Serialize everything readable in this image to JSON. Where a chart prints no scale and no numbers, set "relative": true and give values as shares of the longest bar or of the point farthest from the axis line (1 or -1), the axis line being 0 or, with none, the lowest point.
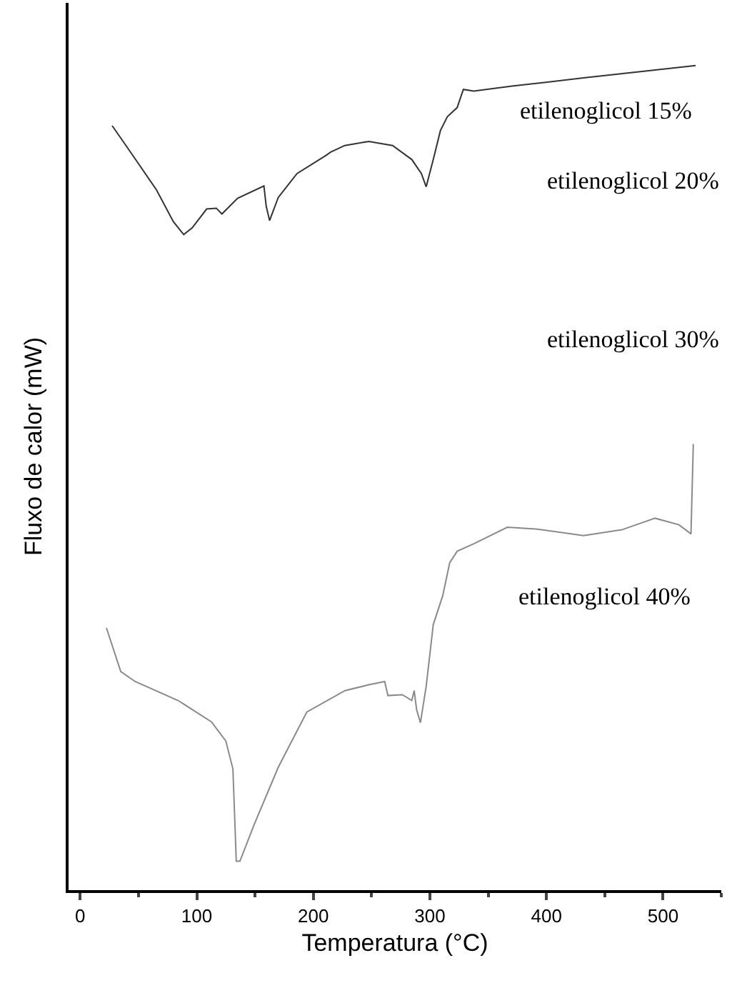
{
  "chart_data": {
    "type": "line",
    "relative": true,
    "xlabel": "Temperatura (°C)",
    "ylabel": "Fluxo de calor (mW)",
    "xlim": [
      -10,
      550
    ],
    "xticks": [
      0,
      100,
      200,
      300,
      400,
      500
    ],
    "grid": false,
    "legend": false,
    "marker": "none",
    "line_style": "solid",
    "series": [
      {
        "name": "etilenoglicol 15%",
        "color": "#333333",
        "x": [
          27.4,
          34.8,
          49,
          65.5,
          79.8,
          88.8,
          96,
          108.5,
          116.7,
          121.6,
          135,
          157.6,
          159.6,
          162.5,
          169.9,
          186,
          210.8,
          214.9,
          227,
          247.6,
          268,
          284.5,
          292.7,
          296.8,
          302.9,
          309,
          315,
          323.4,
          328.7,
          337.7,
          370.4,
          431.8,
          528
        ],
        "values": [
          0.927,
          0.912,
          0.883,
          0.849,
          0.811,
          0.795,
          0.803,
          0.826,
          0.827,
          0.82,
          0.839,
          0.854,
          0.829,
          0.812,
          0.84,
          0.869,
          0.891,
          0.895,
          0.903,
          0.908,
          0.903,
          0.886,
          0.869,
          0.853,
          0.886,
          0.921,
          0.938,
          0.949,
          0.971,
          0.969,
          0.975,
          0.985,
          1.0
        ]
      },
      {
        "name": "etilenoglicol 40%",
        "color": "#8a8a8a",
        "x": [
          22.5,
          34.8,
          47.1,
          83.9,
          112.6,
          124.9,
          131,
          133.9,
          137,
          149.4,
          169.9,
          194.4,
          227.2,
          247.6,
          261.2,
          264,
          276.3,
          284.5,
          286.5,
          288.6,
          291.9,
          296.8,
          302.9,
          311,
          317,
          323.4,
          337.7,
          366.4,
          390.9,
          431.8,
          464.6,
          493.2,
          513.7,
          524,
          526
        ],
        "values": [
          0.318,
          0.265,
          0.253,
          0.23,
          0.204,
          0.181,
          0.147,
          0.035,
          0.035,
          0.08,
          0.149,
          0.216,
          0.242,
          0.249,
          0.253,
          0.236,
          0.237,
          0.23,
          0.242,
          0.219,
          0.203,
          0.247,
          0.322,
          0.357,
          0.397,
          0.411,
          0.42,
          0.44,
          0.438,
          0.43,
          0.437,
          0.451,
          0.443,
          0.432,
          0.541
        ]
      }
    ],
    "annotations": [
      "etilenoglicol 20%",
      "etilenoglicol 30%"
    ]
  }
}
